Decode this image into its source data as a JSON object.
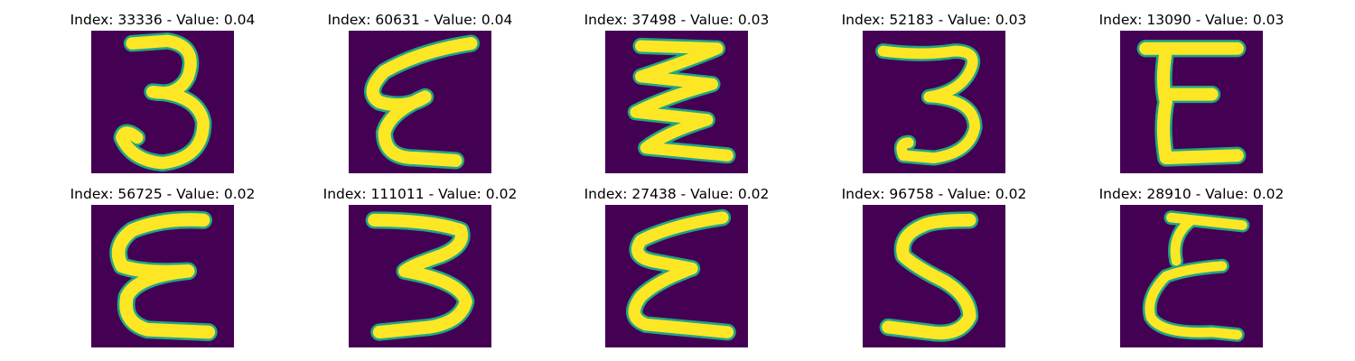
{
  "figure": {
    "colors": {
      "background": "#440154",
      "foreground": "#fde725",
      "edge": "#21a585"
    },
    "panels": [
      {
        "title": "Index: 33336 - Value: 0.04",
        "glyph": "3-round"
      },
      {
        "title": "Index: 60631 - Value: 0.04",
        "glyph": "epsilon-slanted"
      },
      {
        "title": "Index: 37498 - Value: 0.03",
        "glyph": "zigzag"
      },
      {
        "title": "Index: 52183 - Value: 0.03",
        "glyph": "3-small"
      },
      {
        "title": "Index: 13090 - Value: 0.03",
        "glyph": "E-block"
      },
      {
        "title": "Index: 56725 - Value: 0.02",
        "glyph": "E-curly"
      },
      {
        "title": "Index: 111011 - Value: 0.02",
        "glyph": "3-wide"
      },
      {
        "title": "Index: 27438 - Value: 0.02",
        "glyph": "sigma"
      },
      {
        "title": "Index: 96758 - Value: 0.02",
        "glyph": "5-shape"
      },
      {
        "title": "Index: 28910 - Value: 0.02",
        "glyph": "E-thin"
      }
    ]
  }
}
